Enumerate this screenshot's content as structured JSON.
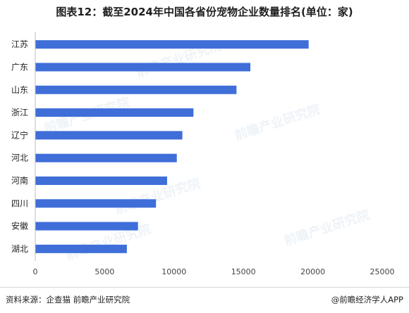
{
  "title": "图表12：截至2024年中国各省份宠物企业数量排名(单位：家)",
  "footer": {
    "source": "资料来源：企查猫 前瞻产业研究院",
    "brand": "@前瞻经济学人APP"
  },
  "watermark": "前瞻产业研究院",
  "colors": {
    "bar": "#3f6ed9",
    "axis": "#bfbfbf",
    "text": "#222222"
  },
  "chart_data": {
    "type": "bar",
    "orientation": "horizontal",
    "categories": [
      "江苏",
      "广东",
      "山东",
      "浙江",
      "辽宁",
      "河北",
      "河南",
      "四川",
      "安徽",
      "湖北"
    ],
    "values": [
      19700,
      15500,
      14500,
      11400,
      10600,
      10200,
      9500,
      8700,
      7400,
      6600
    ],
    "xlim": [
      0,
      25000
    ],
    "xticks": [
      "0",
      "5000",
      "10000",
      "15000",
      "20000",
      "25000"
    ],
    "xlabel": "",
    "ylabel": "",
    "grid": false
  }
}
